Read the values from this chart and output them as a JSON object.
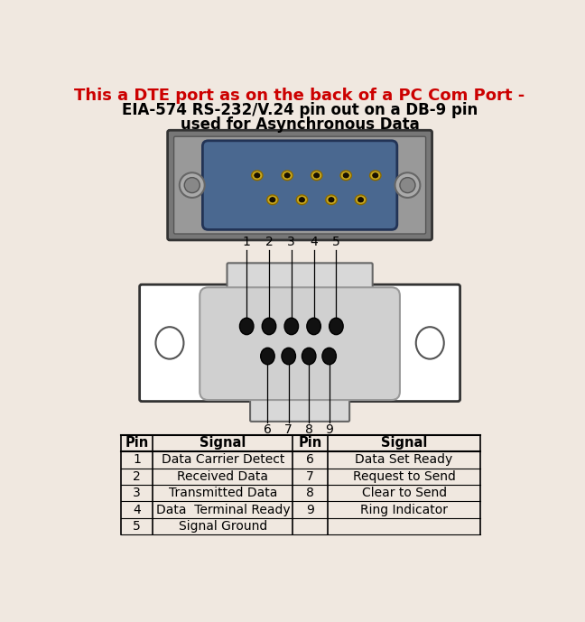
{
  "bg_color": "#f0e8e0",
  "title_line1": "This a DTE port as on the back of a PC Com Port -",
  "title_line2": "EIA-574 RS-232/V.24 pin out on a DB-9 pin",
  "title_line3": "used for Asynchronous Data",
  "title_color1": "#cc0000",
  "title_color2": "#000000",
  "table_headers": [
    "Pin",
    "Signal",
    "Pin",
    "Signal"
  ],
  "table_rows": [
    [
      "1",
      "Data Carrier Detect",
      "6",
      "Data Set Ready"
    ],
    [
      "2",
      "Received Data",
      "7",
      "Request to Send"
    ],
    [
      "3",
      "Transmitted Data",
      "8",
      "Clear to Send"
    ],
    [
      "4",
      "Data  Terminal Ready",
      "9",
      "Ring Indicator"
    ],
    [
      "5",
      "Signal Ground",
      "",
      ""
    ]
  ],
  "pin_labels_top": [
    "1",
    "2",
    "3",
    "4",
    "5"
  ],
  "pin_labels_bottom": [
    "6",
    "7",
    "8",
    "9"
  ],
  "connector_color": "#c8c8c8",
  "pin_hole_color": "#111111",
  "outer_box_color": "#ffffff",
  "outer_box_edge": "#333333",
  "shell_color": "#bbbbbb"
}
